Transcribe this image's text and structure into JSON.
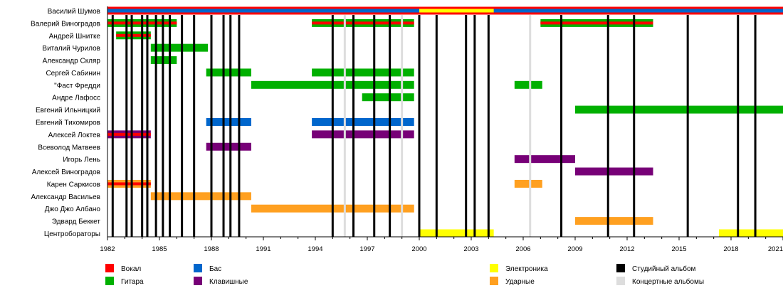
{
  "chart_data": {
    "type": "timeline",
    "xlim": [
      1982,
      2021
    ],
    "x_ticks": [
      1982,
      1985,
      1988,
      1991,
      1994,
      1997,
      2000,
      2003,
      2006,
      2009,
      2012,
      2015,
      2018,
      2021
    ],
    "minor_tick_step": 1,
    "colors": {
      "vocal": "#ff0000",
      "guitar": "#00b000",
      "bass": "#0066cc",
      "keyboards": "#770077",
      "electronics": "#ffff00",
      "drums": "#ffa020",
      "studio": "#000000",
      "live": "#dddddd"
    },
    "members": [
      {
        "name": "Василий Шумов",
        "bars": [
          {
            "start": 1982,
            "end": 2021,
            "role": "vocal",
            "inner": "bass"
          },
          {
            "start": 2000,
            "end": 2004.3,
            "role": "vocal",
            "inner": "electronics"
          }
        ]
      },
      {
        "name": "Валерий Виноградов",
        "bars": [
          {
            "start": 1982,
            "end": 1986,
            "role": "guitar",
            "inner": "vocal"
          },
          {
            "start": 1993.8,
            "end": 1999.7,
            "role": "guitar",
            "inner": "vocal"
          },
          {
            "start": 2007,
            "end": 2013.5,
            "role": "guitar",
            "inner": "vocal"
          }
        ]
      },
      {
        "name": "Андрей Шнитке",
        "bars": [
          {
            "start": 1982.5,
            "end": 1984.5,
            "role": "guitar",
            "inner": "vocal"
          }
        ]
      },
      {
        "name": "Виталий Чурилов",
        "bars": [
          {
            "start": 1984.5,
            "end": 1987.8,
            "role": "guitar"
          }
        ]
      },
      {
        "name": "Александр Скляр",
        "bars": [
          {
            "start": 1984.5,
            "end": 1986,
            "role": "guitar"
          }
        ]
      },
      {
        "name": "Сергей Сабинин",
        "bars": [
          {
            "start": 1987.7,
            "end": 1990.3,
            "role": "guitar"
          },
          {
            "start": 1993.8,
            "end": 1999.7,
            "role": "guitar"
          }
        ]
      },
      {
        "name": "\"Фаст Фредди",
        "bars": [
          {
            "start": 1990.3,
            "end": 1999.7,
            "role": "guitar"
          },
          {
            "start": 2005.5,
            "end": 2007.1,
            "role": "guitar"
          }
        ]
      },
      {
        "name": "Андре Лафосс",
        "bars": [
          {
            "start": 1996.7,
            "end": 1999.7,
            "role": "guitar"
          }
        ]
      },
      {
        "name": "Евгений Ильницкий",
        "bars": [
          {
            "start": 2009,
            "end": 2021,
            "role": "guitar"
          }
        ]
      },
      {
        "name": "Евгений Тихомиров",
        "bars": [
          {
            "start": 1987.7,
            "end": 1990.3,
            "role": "bass"
          },
          {
            "start": 1993.8,
            "end": 1999.7,
            "role": "bass"
          }
        ]
      },
      {
        "name": "Алексей Локтев",
        "bars": [
          {
            "start": 1982,
            "end": 1984.5,
            "role": "keyboards",
            "inner": "vocal"
          },
          {
            "start": 1993.8,
            "end": 1999.7,
            "role": "keyboards"
          }
        ]
      },
      {
        "name": "Всеволод Матвеев",
        "bars": [
          {
            "start": 1987.7,
            "end": 1990.3,
            "role": "keyboards"
          }
        ]
      },
      {
        "name": "Игорь Лень",
        "bars": [
          {
            "start": 2005.5,
            "end": 2009,
            "role": "keyboards"
          }
        ]
      },
      {
        "name": "Алексей Виноградов",
        "bars": [
          {
            "start": 2009,
            "end": 2013.5,
            "role": "keyboards"
          }
        ]
      },
      {
        "name": "Карен Саркисов",
        "bars": [
          {
            "start": 1982,
            "end": 1984.5,
            "role": "drums",
            "inner": "vocal"
          },
          {
            "start": 2005.5,
            "end": 2007.1,
            "role": "drums"
          }
        ]
      },
      {
        "name": "Александр Васильев",
        "bars": [
          {
            "start": 1984.5,
            "end": 1990.3,
            "role": "drums"
          }
        ]
      },
      {
        "name": "Джо Джо Албано",
        "bars": [
          {
            "start": 1990.3,
            "end": 1999.7,
            "role": "drums"
          }
        ]
      },
      {
        "name": "Эдвард Беккет",
        "bars": [
          {
            "start": 2009,
            "end": 2013.5,
            "role": "drums"
          }
        ]
      },
      {
        "name": "Центробораторы",
        "bars": [
          {
            "start": 2000,
            "end": 2004.3,
            "role": "electronics"
          },
          {
            "start": 2017.3,
            "end": 2021,
            "role": "electronics"
          }
        ]
      }
    ],
    "studio_albums": [
      1982.3,
      1983.1,
      1983.4,
      1984.0,
      1984.3,
      1984.8,
      1985.2,
      1985.6,
      1986.3,
      1987.0,
      1988.0,
      1988.7,
      1989.1,
      1989.6,
      1995.0,
      1996.2,
      1997.4,
      1998.3,
      2000.0,
      2001.0,
      2002.7,
      2003.2,
      2004.0,
      2008.2,
      2010.9,
      2012.4,
      2015.5,
      2018.4,
      2019.4
    ],
    "live_albums": [
      1995.7,
      1996.2,
      1999.0,
      2006.4
    ],
    "legend": [
      {
        "key": "vocal",
        "label": "Вокал"
      },
      {
        "key": "guitar",
        "label": "Гитара"
      },
      {
        "key": "bass",
        "label": "Бас"
      },
      {
        "key": "keyboards",
        "label": "Клавишные"
      },
      {
        "key": "electronics",
        "label": "Электроника"
      },
      {
        "key": "drums",
        "label": "Ударные"
      },
      {
        "key": "studio",
        "label": "Студийный альбом"
      },
      {
        "key": "live",
        "label": "Концертные альбомы"
      }
    ]
  }
}
